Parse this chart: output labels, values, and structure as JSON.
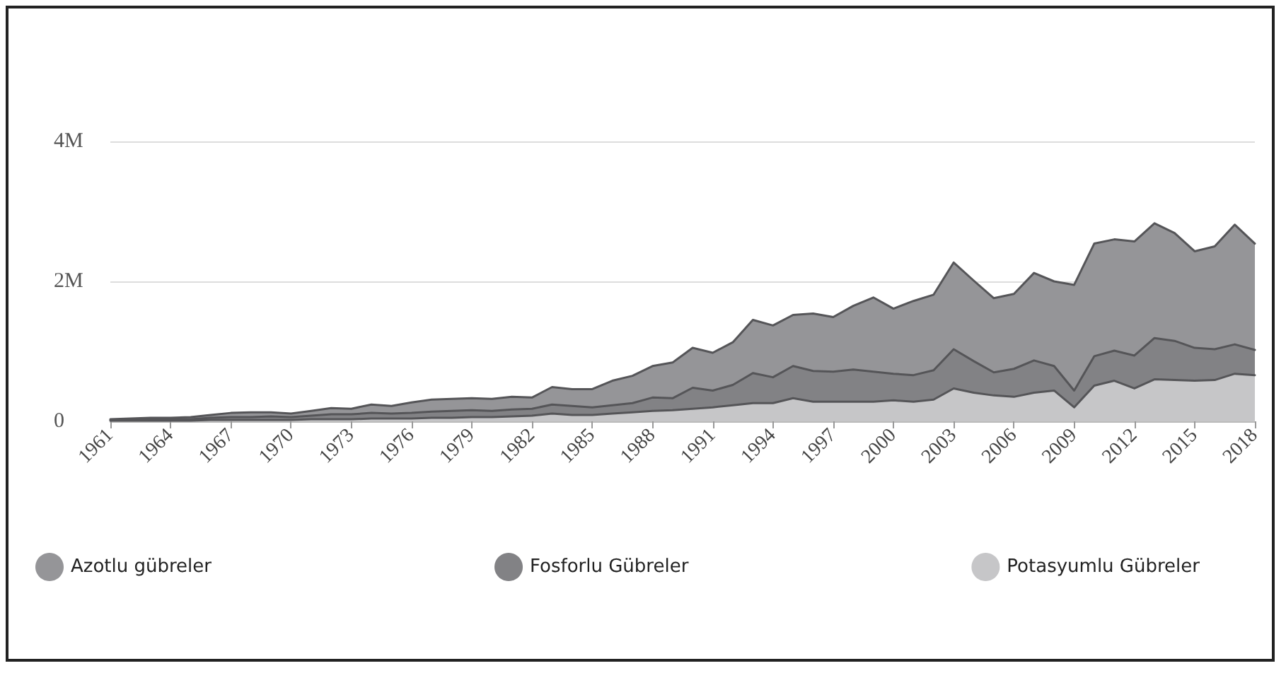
{
  "chart_data": {
    "type": "area",
    "stacked": true,
    "categories": [
      "1961",
      null,
      null,
      "1964",
      null,
      null,
      "1967",
      null,
      null,
      "1970",
      null,
      null,
      "1973",
      null,
      null,
      "1976",
      null,
      null,
      "1979",
      null,
      null,
      "1982",
      null,
      null,
      "1985",
      null,
      null,
      "1988",
      null,
      null,
      "1991",
      null,
      null,
      "1994",
      null,
      null,
      "1997",
      null,
      null,
      "2000",
      null,
      null,
      "2003",
      null,
      null,
      "2006",
      null,
      null,
      "2009",
      null,
      null,
      "2012",
      null,
      null,
      "2015",
      null,
      null,
      "2018"
    ],
    "series": [
      {
        "name": "Potasyumlu Gübreler",
        "color": "#c6c6c8",
        "values": [
          10000,
          10000,
          10000,
          10000,
          10000,
          20000,
          20000,
          20000,
          20000,
          20000,
          30000,
          30000,
          30000,
          40000,
          40000,
          40000,
          50000,
          50000,
          60000,
          60000,
          70000,
          80000,
          110000,
          90000,
          90000,
          110000,
          130000,
          150000,
          160000,
          180000,
          200000,
          230000,
          260000,
          260000,
          330000,
          280000,
          280000,
          280000,
          280000,
          300000,
          280000,
          310000,
          470000,
          410000,
          370000,
          350000,
          410000,
          440000,
          200000,
          510000,
          580000,
          470000,
          600000,
          590000,
          580000,
          590000,
          680000,
          660000
        ]
      },
      {
        "name": "Fosforlu Gübreler",
        "color": "#828285",
        "values": [
          10000,
          10000,
          20000,
          20000,
          20000,
          30000,
          40000,
          40000,
          50000,
          40000,
          50000,
          70000,
          70000,
          80000,
          70000,
          80000,
          90000,
          100000,
          100000,
          90000,
          100000,
          100000,
          130000,
          130000,
          110000,
          120000,
          130000,
          190000,
          170000,
          300000,
          240000,
          290000,
          430000,
          370000,
          460000,
          440000,
          430000,
          460000,
          430000,
          380000,
          380000,
          420000,
          560000,
          450000,
          330000,
          400000,
          460000,
          350000,
          240000,
          420000,
          430000,
          470000,
          590000,
          560000,
          470000,
          440000,
          420000,
          360000
        ]
      },
      {
        "name": "Azotlu gübreler",
        "color": "#959598",
        "values": [
          10000,
          20000,
          20000,
          20000,
          30000,
          40000,
          60000,
          70000,
          60000,
          50000,
          70000,
          90000,
          80000,
          120000,
          110000,
          150000,
          170000,
          170000,
          170000,
          170000,
          180000,
          160000,
          250000,
          240000,
          260000,
          350000,
          390000,
          450000,
          510000,
          570000,
          540000,
          610000,
          760000,
          740000,
          730000,
          820000,
          780000,
          910000,
          1060000,
          930000,
          1060000,
          1080000,
          1240000,
          1150000,
          1060000,
          1070000,
          1250000,
          1210000,
          1510000,
          1610000,
          1590000,
          1630000,
          1640000,
          1540000,
          1380000,
          1470000,
          1710000,
          1520000
        ]
      }
    ],
    "ylim": [
      0,
      4000000
    ],
    "yticks": [
      {
        "value": 0,
        "label": "0"
      },
      {
        "value": 2000000,
        "label": "2M"
      },
      {
        "value": 4000000,
        "label": "4M"
      }
    ],
    "grid": "y",
    "legend": "bottom",
    "marker": "none",
    "line_style": "solid"
  }
}
